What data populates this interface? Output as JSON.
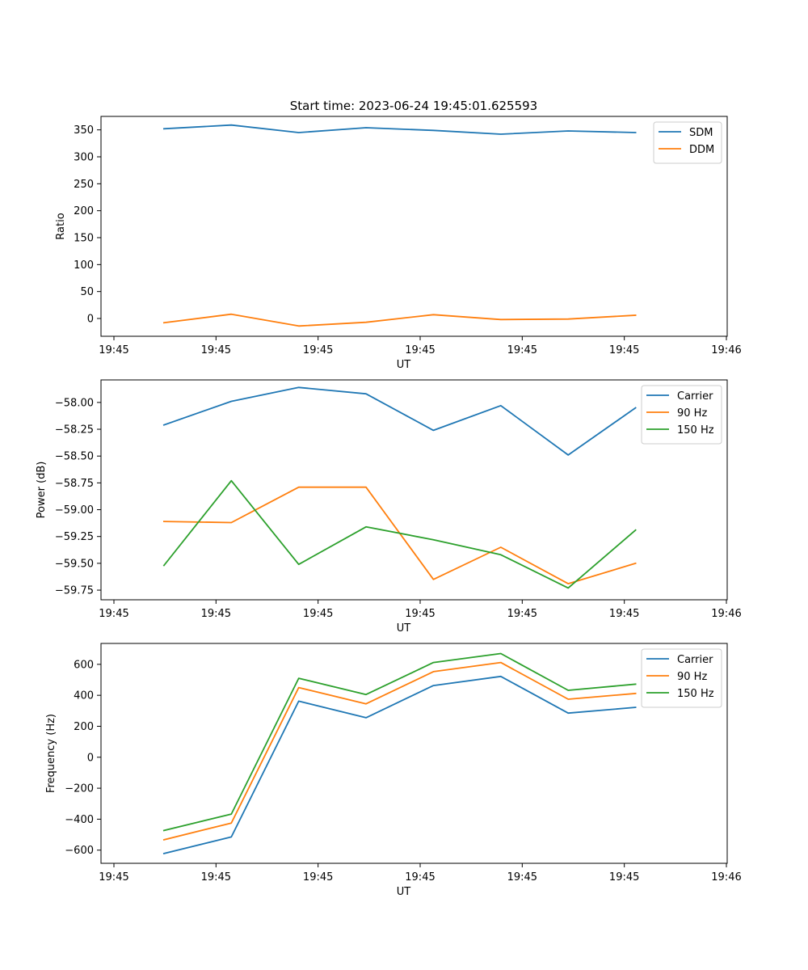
{
  "figure": {
    "title": "Start time: 2023-06-24 19:45:01.625593"
  },
  "chart_data": [
    {
      "type": "line",
      "title": "",
      "xlabel": "UT",
      "ylabel": "Ratio",
      "xlim": [
        0,
        6
      ],
      "ylim": [
        -33,
        375
      ],
      "x_ticks": [
        0,
        1,
        2,
        3,
        4,
        5,
        6
      ],
      "x_ticklabels": [
        "19:45",
        "19:45",
        "19:45",
        "19:45",
        "19:45",
        "19:45",
        "19:46"
      ],
      "y_ticks": [
        0,
        50,
        100,
        150,
        200,
        250,
        300,
        350
      ],
      "y_ticklabels": [
        "0",
        "50",
        "100",
        "150",
        "200",
        "250",
        "300",
        "350"
      ],
      "grid": false,
      "legend_position": "top-right",
      "x": [
        0.49,
        1.15,
        1.81,
        2.47,
        3.13,
        3.79,
        4.45,
        5.11
      ],
      "series": [
        {
          "name": "SDM",
          "color": "#1f77b4",
          "values": [
            352,
            359,
            345,
            354,
            349,
            342,
            348,
            345
          ]
        },
        {
          "name": "DDM",
          "color": "#ff7f0e",
          "values": [
            -8,
            8,
            -14,
            -7,
            7,
            -2,
            -1,
            6
          ]
        }
      ]
    },
    {
      "type": "line",
      "title": "",
      "xlabel": "UT",
      "ylabel": "Power (dB)",
      "xlim": [
        0,
        6
      ],
      "ylim": [
        -59.84,
        -57.79
      ],
      "x_ticks": [
        0,
        1,
        2,
        3,
        4,
        5,
        6
      ],
      "x_ticklabels": [
        "19:45",
        "19:45",
        "19:45",
        "19:45",
        "19:45",
        "19:45",
        "19:46"
      ],
      "y_ticks": [
        -58.0,
        -58.25,
        -58.5,
        -58.75,
        -59.0,
        -59.25,
        -59.5,
        -59.75
      ],
      "y_ticklabels": [
        "−58.00",
        "−58.25",
        "−58.50",
        "−58.75",
        "−59.00",
        "−59.25",
        "−59.50",
        "−59.75"
      ],
      "grid": false,
      "legend_position": "top-right",
      "x": [
        0.49,
        1.15,
        1.81,
        2.47,
        3.13,
        3.79,
        4.45,
        5.11
      ],
      "series": [
        {
          "name": "Carrier",
          "color": "#1f77b4",
          "values": [
            -58.21,
            -57.99,
            -57.86,
            -57.92,
            -58.26,
            -58.03,
            -58.49,
            -58.05
          ]
        },
        {
          "name": "90 Hz",
          "color": "#ff7f0e",
          "values": [
            -59.11,
            -59.12,
            -58.79,
            -58.79,
            -59.65,
            -59.35,
            -59.69,
            -59.5
          ]
        },
        {
          "name": "150 Hz",
          "color": "#2ca02c",
          "values": [
            -59.52,
            -58.73,
            -59.51,
            -59.16,
            -59.28,
            -59.42,
            -59.73,
            -59.19
          ]
        }
      ]
    },
    {
      "type": "line",
      "title": "",
      "xlabel": "UT",
      "ylabel": "Frequency (Hz)",
      "xlim": [
        0,
        6
      ],
      "ylim": [
        -685,
        735
      ],
      "x_ticks": [
        0,
        1,
        2,
        3,
        4,
        5,
        6
      ],
      "x_ticklabels": [
        "19:45",
        "19:45",
        "19:45",
        "19:45",
        "19:45",
        "19:45",
        "19:46"
      ],
      "y_ticks": [
        -600,
        -400,
        -200,
        0,
        200,
        400,
        600
      ],
      "y_ticklabels": [
        "−600",
        "−400",
        "−200",
        "0",
        "200",
        "400",
        "600"
      ],
      "grid": false,
      "legend_position": "top-right",
      "x": [
        0.49,
        1.15,
        1.81,
        2.47,
        3.13,
        3.79,
        4.45,
        5.11
      ],
      "series": [
        {
          "name": "Carrier",
          "color": "#1f77b4",
          "values": [
            -622,
            -515,
            362,
            255,
            463,
            522,
            285,
            322
          ]
        },
        {
          "name": "90 Hz",
          "color": "#ff7f0e",
          "values": [
            -533,
            -425,
            450,
            345,
            553,
            612,
            375,
            412
          ]
        },
        {
          "name": "150 Hz",
          "color": "#2ca02c",
          "values": [
            -473,
            -367,
            510,
            405,
            612,
            670,
            432,
            472
          ]
        }
      ]
    }
  ]
}
